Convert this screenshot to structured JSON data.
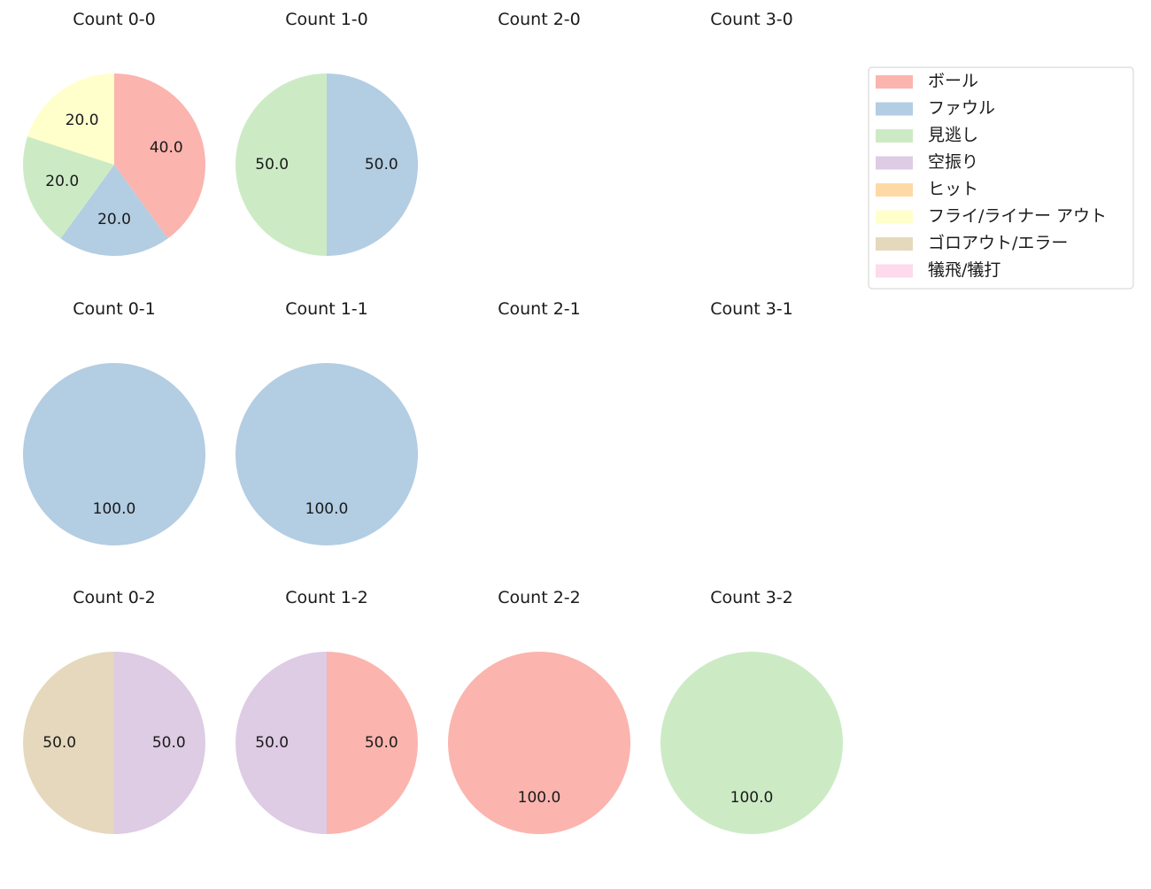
{
  "legend": {
    "placement": "upper-right",
    "entries": [
      {
        "label": "ボール",
        "color": "#fbb4ae"
      },
      {
        "label": "ファウル",
        "color": "#b3cde3"
      },
      {
        "label": "見逃し",
        "color": "#ccebc5"
      },
      {
        "label": "空振り",
        "color": "#decbe4"
      },
      {
        "label": "ヒット",
        "color": "#fed9a6"
      },
      {
        "label": "フライ/ライナー アウト",
        "color": "#ffffcc"
      },
      {
        "label": "ゴロアウト/エラー",
        "color": "#e5d8bd"
      },
      {
        "label": "犠飛/犠打",
        "color": "#fddaec"
      }
    ]
  },
  "chart_data": [
    {
      "type": "pie",
      "title": "Count 0-0",
      "slices": [
        {
          "category": "ボール",
          "value": 40.0
        },
        {
          "category": "ファウル",
          "value": 20.0
        },
        {
          "category": "見逃し",
          "value": 20.0
        },
        {
          "category": "フライ/ライナー アウト",
          "value": 20.0
        }
      ]
    },
    {
      "type": "pie",
      "title": "Count 1-0",
      "slices": [
        {
          "category": "ファウル",
          "value": 50.0
        },
        {
          "category": "見逃し",
          "value": 50.0
        }
      ]
    },
    {
      "type": "pie",
      "title": "Count 2-0",
      "slices": []
    },
    {
      "type": "pie",
      "title": "Count 3-0",
      "slices": []
    },
    {
      "type": "pie",
      "title": "Count 0-1",
      "slices": [
        {
          "category": "ファウル",
          "value": 100.0
        }
      ]
    },
    {
      "type": "pie",
      "title": "Count 1-1",
      "slices": [
        {
          "category": "ファウル",
          "value": 100.0
        }
      ]
    },
    {
      "type": "pie",
      "title": "Count 2-1",
      "slices": []
    },
    {
      "type": "pie",
      "title": "Count 3-1",
      "slices": []
    },
    {
      "type": "pie",
      "title": "Count 0-2",
      "slices": [
        {
          "category": "空振り",
          "value": 50.0
        },
        {
          "category": "ゴロアウト/エラー",
          "value": 50.0
        }
      ]
    },
    {
      "type": "pie",
      "title": "Count 1-2",
      "slices": [
        {
          "category": "ボール",
          "value": 50.0
        },
        {
          "category": "空振り",
          "value": 50.0
        }
      ]
    },
    {
      "type": "pie",
      "title": "Count 2-2",
      "slices": [
        {
          "category": "ボール",
          "value": 100.0
        }
      ]
    },
    {
      "type": "pie",
      "title": "Count 3-2",
      "slices": [
        {
          "category": "見逃し",
          "value": 100.0
        }
      ]
    }
  ]
}
